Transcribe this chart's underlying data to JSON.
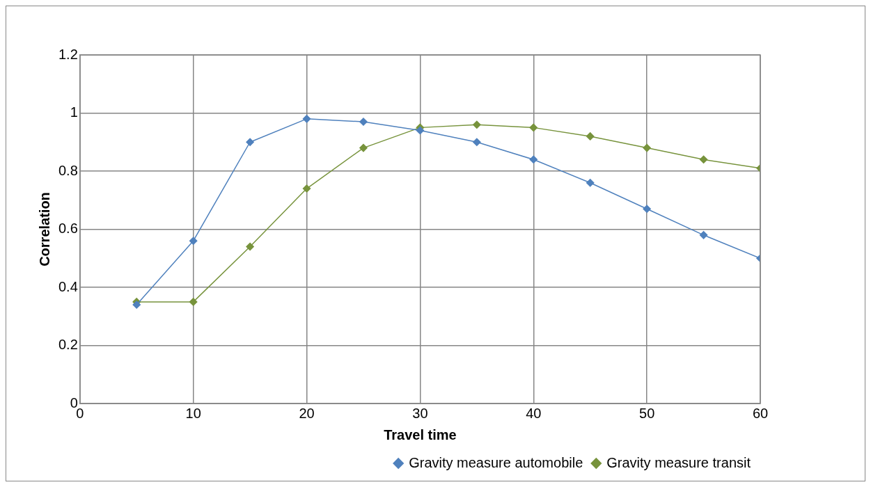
{
  "chart_data": {
    "type": "line",
    "xlabel": "Travel time",
    "ylabel": "Correlation",
    "x": [
      5,
      10,
      15,
      20,
      25,
      30,
      35,
      40,
      45,
      50,
      55,
      60
    ],
    "series": [
      {
        "name": "Gravity measure automobile",
        "color": "#4f81bd",
        "values": [
          0.34,
          0.56,
          0.9,
          0.98,
          0.97,
          0.94,
          0.9,
          0.84,
          0.76,
          0.67,
          0.58,
          0.5
        ]
      },
      {
        "name": "Gravity measure transit",
        "color": "#77933c",
        "values": [
          0.35,
          0.35,
          0.54,
          0.74,
          0.88,
          0.95,
          0.96,
          0.95,
          0.92,
          0.88,
          0.84,
          0.81
        ]
      }
    ],
    "xlim": [
      0,
      60
    ],
    "xticks": [
      0,
      10,
      20,
      30,
      40,
      50,
      60
    ],
    "ylim": [
      0,
      1.2
    ],
    "yticks": [
      0,
      0.2,
      0.4,
      0.6,
      0.8,
      1,
      1.2
    ],
    "grid": true,
    "legend": "bottom right",
    "marker": "diamond",
    "line_style": "solid"
  }
}
